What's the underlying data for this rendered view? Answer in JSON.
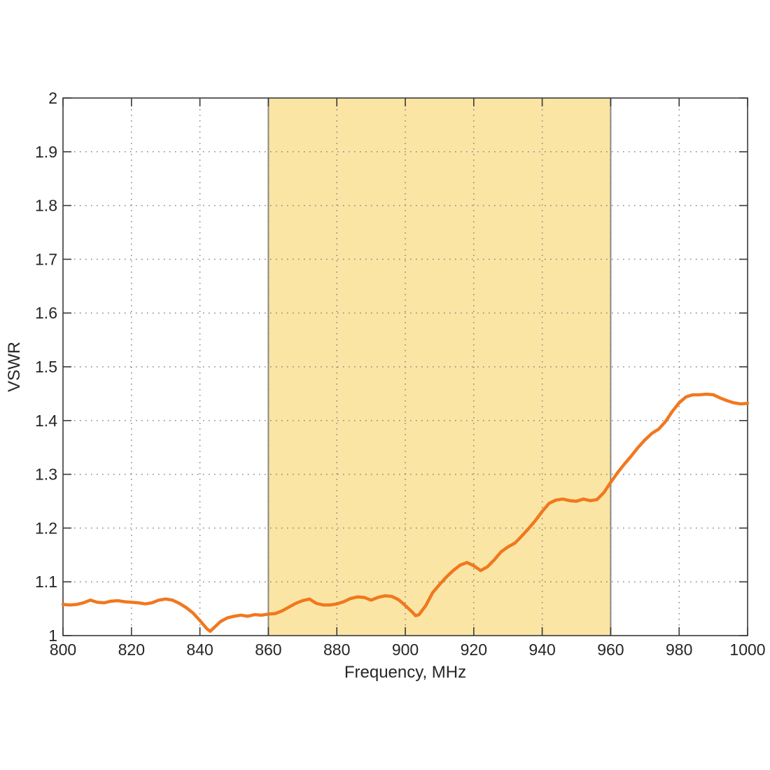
{
  "colors": {
    "background": "#FFFFFF",
    "axis": "#3A3A3A",
    "grid": "#808080",
    "text": "#262626"
  },
  "chart_data": {
    "type": "line",
    "title": "",
    "xlabel": "Frequency, MHz",
    "ylabel": "VSWR",
    "xlim": [
      800,
      1000
    ],
    "ylim": [
      1,
      2
    ],
    "grid": "dotted",
    "legend": "none",
    "xticks": [
      800,
      820,
      840,
      860,
      880,
      900,
      920,
      940,
      960,
      980,
      1000
    ],
    "xtick_labels": [
      "800",
      "820",
      "840",
      "860",
      "880",
      "900",
      "920",
      "940",
      "960",
      "980",
      "1000"
    ],
    "yticks": [
      1,
      1.1,
      1.2,
      1.3,
      1.4,
      1.5,
      1.6,
      1.7,
      1.8,
      1.9,
      2
    ],
    "ytick_labels": [
      "1",
      "1.1",
      "1.2",
      "1.3",
      "1.4",
      "1.5",
      "1.6",
      "1.7",
      "1.8",
      "1.9",
      "2"
    ],
    "band": {
      "label": "highlight-band-860-960",
      "x0": 860,
      "x1": 960,
      "fill": "#FBE5A4",
      "edge_color": "#8A8A8A"
    },
    "series": [
      {
        "name": "VSWR",
        "color": "#F0781E",
        "x": [
          800,
          802,
          804,
          806,
          808,
          810,
          812,
          814,
          816,
          818,
          820,
          822,
          824,
          826,
          828,
          830,
          832,
          834,
          836,
          838,
          840,
          842,
          843,
          844,
          846,
          848,
          850,
          852,
          854,
          856,
          858,
          860,
          862,
          864,
          866,
          868,
          870,
          872,
          874,
          876,
          878,
          880,
          882,
          884,
          886,
          888,
          890,
          892,
          894,
          896,
          898,
          900,
          902,
          903,
          904,
          906,
          908,
          910,
          912,
          914,
          916,
          918,
          920,
          922,
          924,
          926,
          928,
          930,
          932,
          934,
          936,
          938,
          940,
          942,
          944,
          946,
          948,
          950,
          952,
          954,
          956,
          958,
          960,
          962,
          964,
          966,
          968,
          970,
          972,
          974,
          976,
          978,
          980,
          982,
          984,
          986,
          988,
          990,
          992,
          994,
          996,
          998,
          1000
        ],
        "y": [
          1.058,
          1.057,
          1.058,
          1.061,
          1.066,
          1.062,
          1.061,
          1.064,
          1.065,
          1.063,
          1.062,
          1.061,
          1.059,
          1.061,
          1.066,
          1.068,
          1.066,
          1.06,
          1.052,
          1.042,
          1.028,
          1.013,
          1.008,
          1.014,
          1.026,
          1.033,
          1.036,
          1.038,
          1.036,
          1.039,
          1.038,
          1.04,
          1.041,
          1.046,
          1.053,
          1.06,
          1.065,
          1.068,
          1.06,
          1.057,
          1.057,
          1.059,
          1.063,
          1.069,
          1.072,
          1.071,
          1.066,
          1.071,
          1.074,
          1.073,
          1.067,
          1.056,
          1.044,
          1.037,
          1.039,
          1.056,
          1.08,
          1.095,
          1.109,
          1.121,
          1.131,
          1.136,
          1.13,
          1.121,
          1.128,
          1.141,
          1.156,
          1.165,
          1.172,
          1.185,
          1.199,
          1.214,
          1.231,
          1.246,
          1.252,
          1.254,
          1.251,
          1.25,
          1.254,
          1.251,
          1.253,
          1.266,
          1.285,
          1.303,
          1.319,
          1.334,
          1.35,
          1.364,
          1.376,
          1.384,
          1.398,
          1.417,
          1.433,
          1.444,
          1.448,
          1.448,
          1.449,
          1.448,
          1.442,
          1.437,
          1.433,
          1.431,
          1.432
        ]
      }
    ]
  }
}
